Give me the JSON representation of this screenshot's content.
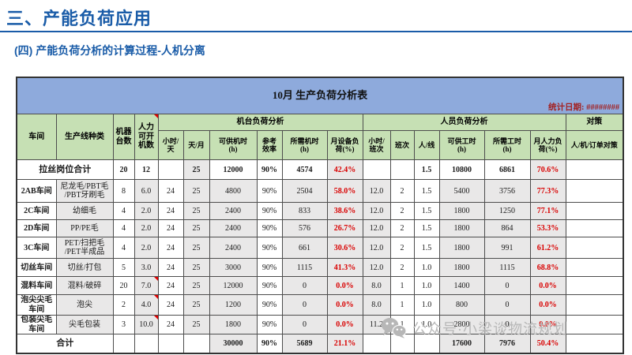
{
  "slide": {
    "title": "三、产能负荷应用",
    "subtitle": "(四) 产能负荷分析的计算过程-人机分离"
  },
  "colors": {
    "accent_blue": "#1A5CA8",
    "band_blue": "#8EAADC",
    "header_green": "#C6E0B4",
    "cell_gray": "#E9E8E8",
    "alert_red": "#D90000",
    "date_red": "#A32020"
  },
  "table": {
    "title": "10月 生产负荷分析表",
    "stat_date_label": "统计日期: ########",
    "header": {
      "workshop": "车间",
      "line_type": "生产线种类",
      "machine_count": "机器\n台数",
      "manpower_machines": "人力\n可开\n机数",
      "machine_group": "机台负荷分析",
      "personnel_group": "人员负荷分析",
      "countermeasure_group": "对策",
      "machine_cols": [
        "小时/\n天",
        "天/月",
        "可供机时\n(h)",
        "参考\n效率",
        "所需机时\n(h)",
        "月设备负\n荷(%)"
      ],
      "personnel_cols": [
        "小时/\n班次",
        "班次",
        "人/线",
        "可供工时\n(h)",
        "所需工时\n(h)",
        "月人力负\n荷(%)"
      ],
      "countermeasure_col": "人/机/订单对策"
    },
    "rows": [
      {
        "cells": [
          "拉丝岗位合计",
          "",
          "20",
          "12",
          "",
          "25",
          "12000",
          "90%",
          "4574",
          "42.4%",
          "",
          "",
          "1.5",
          "10800",
          "6861",
          "70.6%",
          ""
        ]
      },
      {
        "cells": [
          "2AB车间",
          "尼龙毛/PBT毛\n/PBT牙刷毛",
          "8",
          "6.0",
          "24",
          "25",
          "4800",
          "90%",
          "2504",
          "58.0%",
          "12.0",
          "2",
          "1.5",
          "5400",
          "3756",
          "77.3%",
          ""
        ]
      },
      {
        "cells": [
          "2C车间",
          "幼细毛",
          "4",
          "2.0",
          "24",
          "25",
          "2400",
          "90%",
          "833",
          "38.6%",
          "12.0",
          "2",
          "1.5",
          "1800",
          "1250",
          "77.1%",
          ""
        ]
      },
      {
        "cells": [
          "2D车间",
          "PP/PE毛",
          "4",
          "2.0",
          "24",
          "25",
          "2400",
          "90%",
          "576",
          "26.7%",
          "12.0",
          "2",
          "1.5",
          "1800",
          "864",
          "53.3%",
          ""
        ]
      },
      {
        "cells": [
          "3C车间",
          "PET/扫把毛\n/PET半成品",
          "4",
          "2.0",
          "24",
          "25",
          "2400",
          "90%",
          "661",
          "30.6%",
          "12.0",
          "2",
          "1.5",
          "1800",
          "991",
          "61.2%",
          ""
        ]
      },
      {
        "cells": [
          "切丝车间",
          "切丝/打包",
          "5",
          "3.0",
          "24",
          "25",
          "3000",
          "90%",
          "1115",
          "41.3%",
          "12.0",
          "2",
          "1.0",
          "1800",
          "1115",
          "68.8%",
          ""
        ]
      },
      {
        "cells": [
          "混料车间",
          "混料/破碎",
          "20",
          "7.0",
          "24",
          "25",
          "12000",
          "90%",
          "0",
          "0.0%",
          "8.0",
          "1",
          "1.0",
          "1400",
          "0",
          "0.0%",
          ""
        ]
      },
      {
        "cells": [
          "泡尖尖毛\n车间",
          "泡尖",
          "2",
          "4.0",
          "24",
          "25",
          "1200",
          "90%",
          "0",
          "0.0%",
          "8.0",
          "1",
          "1.0",
          "800",
          "0",
          "0.0%",
          ""
        ]
      },
      {
        "cells": [
          "包装尖毛\n车间",
          "尖毛包装",
          "3",
          "10.0",
          "24",
          "25",
          "1800",
          "90%",
          "0",
          "0.0%",
          "11.2",
          "1",
          "1.0",
          "2800",
          "0",
          "0.0%",
          ""
        ]
      },
      {
        "cells": [
          "合计",
          "",
          "",
          "",
          "",
          "",
          "30000",
          "90%",
          "5689",
          "21.1%",
          "",
          "",
          "",
          "17600",
          "7976",
          "50.4%",
          ""
        ]
      }
    ]
  },
  "watermark": {
    "icon": "wechat-icon",
    "text": "公众号·小梁谈物流规划"
  }
}
